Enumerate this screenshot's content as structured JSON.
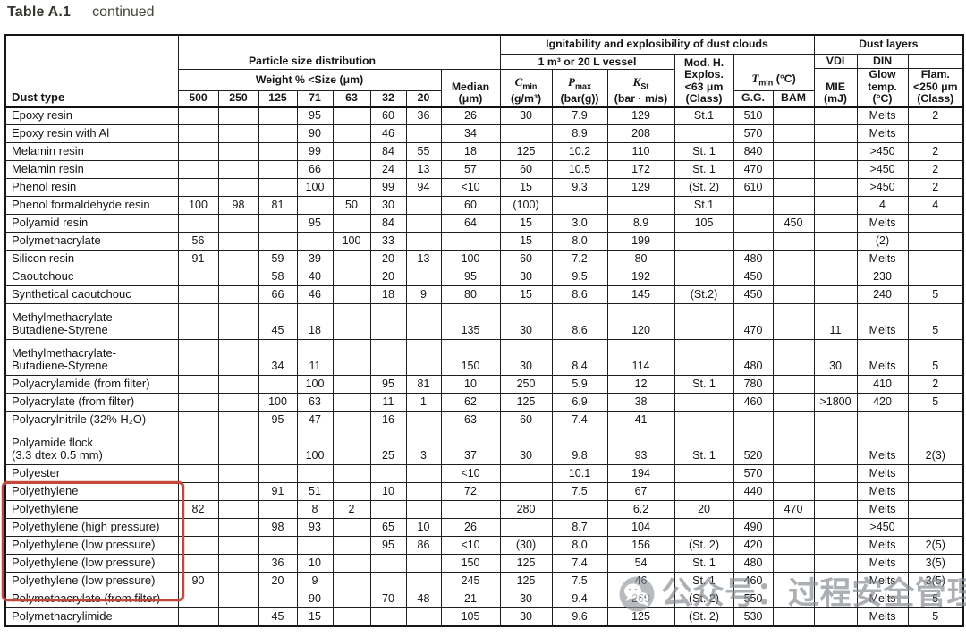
{
  "title": {
    "label": "Table A.1",
    "suffix": "continued"
  },
  "header": {
    "dust_type": "Dust type",
    "particle_group": "Particle size distribution",
    "weight_label": "Weight % <Size (μm)",
    "sizes": [
      "500",
      "250",
      "125",
      "71",
      "63",
      "32",
      "20"
    ],
    "median": {
      "line1": "Median",
      "line2": "(μm)"
    },
    "ignitability_group": "Ignitability and explosibility of dust clouds",
    "vessel_label": "1 m³ or 20 L vessel",
    "cmin": {
      "sym": "C",
      "sub": "min",
      "unit": "(g/m³)"
    },
    "pmax": {
      "sym": "P",
      "sub": "max",
      "unit": "(bar(g))"
    },
    "kst": {
      "sym": "K",
      "sub": "St",
      "unit": "(bar · m/s)"
    },
    "explos": {
      "lines": [
        "Mod. H.",
        "Explos.",
        "<63 μm",
        "(Class)"
      ]
    },
    "tmin": {
      "sym": "T",
      "sub": "min",
      "unit": "(°C)"
    },
    "gg": "G.G.",
    "bam": "BAM",
    "dust_layers_group": "Dust layers",
    "vdi": "VDI",
    "din": "DIN",
    "mie": {
      "lines": [
        "MIE",
        "(mJ)"
      ]
    },
    "glow": {
      "lines": [
        "Glow",
        "temp.",
        "(°C)"
      ]
    },
    "flam": {
      "lines": [
        "Flam.",
        "<250 μm",
        "(Class)"
      ]
    }
  },
  "column_keys": [
    "500",
    "250",
    "125",
    "71",
    "63",
    "32",
    "20",
    "median_um",
    "cmin_g_m3",
    "pmax_bar_g",
    "kst_bar_m_s",
    "explos_class",
    "tmin_gg",
    "tmin_bam",
    "mie_mj",
    "glow_temp",
    "flam_class"
  ],
  "rows": [
    {
      "name": "Epoxy resin",
      "highlight": false,
      "cells": [
        "",
        "",
        "",
        "95",
        "",
        "60",
        "36",
        "26",
        "30",
        "7.9",
        "129",
        "St.1",
        "510",
        "",
        "",
        "Melts",
        "2"
      ]
    },
    {
      "name": "Epoxy resin with Al",
      "highlight": false,
      "cells": [
        "",
        "",
        "",
        "90",
        "",
        "46",
        "",
        "34",
        "",
        "8.9",
        "208",
        "",
        "570",
        "",
        "",
        "Melts",
        ""
      ]
    },
    {
      "name": "Melamin resin",
      "highlight": false,
      "cells": [
        "",
        "",
        "",
        "99",
        "",
        "84",
        "55",
        "18",
        "125",
        "10.2",
        "110",
        "St. 1",
        "840",
        "",
        "",
        ">450",
        "2"
      ]
    },
    {
      "name": "Melamin resin",
      "highlight": false,
      "cells": [
        "",
        "",
        "",
        "66",
        "",
        "24",
        "13",
        "57",
        "60",
        "10.5",
        "172",
        "St. 1",
        "470",
        "",
        "",
        ">450",
        "2"
      ]
    },
    {
      "name": "Phenol resin",
      "highlight": false,
      "cells": [
        "",
        "",
        "",
        "100",
        "",
        "99",
        "94",
        "<10",
        "15",
        "9.3",
        "129",
        "(St. 2)",
        "610",
        "",
        "",
        ">450",
        "2"
      ]
    },
    {
      "name": "Phenol formaldehyde resin",
      "highlight": false,
      "cells": [
        "100",
        "98",
        "81",
        "",
        "50",
        "30",
        "",
        "60",
        "(100)",
        "",
        "",
        "St.1",
        "",
        "",
        "",
        "4",
        "4"
      ]
    },
    {
      "name": "Polyamid resin",
      "highlight": false,
      "cells": [
        "",
        "",
        "",
        "95",
        "",
        "84",
        "",
        "64",
        "15",
        "3.0",
        "8.9",
        "105",
        "",
        "450",
        "",
        "Melts",
        ""
      ]
    },
    {
      "name": "Polymethacrylate",
      "highlight": false,
      "cells": [
        "56",
        "",
        "",
        "",
        "100",
        "33",
        "",
        "",
        "15",
        "8.0",
        "199",
        "",
        "",
        "",
        "",
        "(2)",
        ""
      ]
    },
    {
      "name": "Silicon resin",
      "highlight": false,
      "cells": [
        "91",
        "",
        "59",
        "39",
        "",
        "20",
        "13",
        "100",
        "60",
        "7.2",
        "80",
        "",
        "480",
        "",
        "",
        "Melts",
        ""
      ]
    },
    {
      "name": "Caoutchouc",
      "highlight": false,
      "cells": [
        "",
        "",
        "58",
        "40",
        "",
        "20",
        "",
        "95",
        "30",
        "9.5",
        "192",
        "",
        "450",
        "",
        "",
        "230",
        ""
      ]
    },
    {
      "name": "Synthetical caoutchouc",
      "highlight": false,
      "cells": [
        "",
        "",
        "66",
        "46",
        "",
        "18",
        "9",
        "80",
        "15",
        "8.6",
        "145",
        "(St.2)",
        "450",
        "",
        "",
        "240",
        "5"
      ]
    },
    {
      "name": "Methylmethacrylate-\nButadiene-Styrene",
      "highlight": false,
      "cells": [
        "",
        "",
        "45",
        "18",
        "",
        "",
        "",
        "135",
        "30",
        "8.6",
        "120",
        "",
        "470",
        "",
        "11",
        "Melts",
        "5"
      ]
    },
    {
      "name": "Methylmethacrylate-\nButadiene-Styrene",
      "highlight": false,
      "cells": [
        "",
        "",
        "34",
        "11",
        "",
        "",
        "",
        "150",
        "30",
        "8.4",
        "114",
        "",
        "480",
        "",
        "30",
        "Melts",
        "5"
      ]
    },
    {
      "name": "Polyacrylamide (from filter)",
      "highlight": false,
      "cells": [
        "",
        "",
        "",
        "100",
        "",
        "95",
        "81",
        "10",
        "250",
        "5.9",
        "12",
        "St. 1",
        "780",
        "",
        "",
        "410",
        "2"
      ]
    },
    {
      "name": "Polyacrylate (from filter)",
      "highlight": false,
      "cells": [
        "",
        "",
        "100",
        "63",
        "",
        "11",
        "1",
        "62",
        "125",
        "6.9",
        "38",
        "",
        "460",
        "",
        ">1800",
        "420",
        "5"
      ]
    },
    {
      "name": "Polyacrylnitrile (32% H₂O)",
      "highlight": false,
      "cells": [
        "",
        "",
        "95",
        "47",
        "",
        "16",
        "",
        "63",
        "60",
        "7.4",
        "41",
        "",
        "",
        "",
        "",
        "",
        ""
      ]
    },
    {
      "name": "Polyamide flock\n(3.3 dtex 0.5 mm)",
      "highlight": false,
      "cells": [
        "",
        "",
        "",
        "100",
        "",
        "25",
        "3",
        "37",
        "30",
        "9.8",
        "93",
        "St. 1",
        "520",
        "",
        "",
        "Melts",
        "2(3)"
      ]
    },
    {
      "name": "Polyester",
      "highlight": false,
      "cells": [
        "",
        "",
        "",
        "",
        "",
        "",
        "",
        "<10",
        "",
        "10.1",
        "194",
        "",
        "570",
        "",
        "",
        "Melts",
        ""
      ]
    },
    {
      "name": "Polyethylene",
      "highlight": true,
      "cells": [
        "",
        "",
        "91",
        "51",
        "",
        "10",
        "",
        "72",
        "",
        "7.5",
        "67",
        "",
        "440",
        "",
        "",
        "Melts",
        ""
      ]
    },
    {
      "name": "Polyethylene",
      "highlight": true,
      "cells": [
        "82",
        "",
        "",
        "8",
        "2",
        "",
        "",
        "",
        "280",
        "",
        "6.2",
        "20",
        "",
        "470",
        "",
        "Melts",
        ""
      ]
    },
    {
      "name": "Polyethylene (high pressure)",
      "highlight": true,
      "cells": [
        "",
        "",
        "98",
        "93",
        "",
        "65",
        "10",
        "26",
        "",
        "8.7",
        "104",
        "",
        "490",
        "",
        "",
        ">450",
        ""
      ]
    },
    {
      "name": "Polyethylene (low pressure)",
      "highlight": true,
      "cells": [
        "",
        "",
        "",
        "",
        "",
        "95",
        "86",
        "<10",
        "(30)",
        "8.0",
        "156",
        "(St. 2)",
        "420",
        "",
        "",
        "Melts",
        "2(5)"
      ]
    },
    {
      "name": "Polyethylene (low pressure)",
      "highlight": true,
      "cells": [
        "",
        "",
        "36",
        "10",
        "",
        "",
        "",
        "150",
        "125",
        "7.4",
        "54",
        "St. 1",
        "480",
        "",
        "",
        "Melts",
        "3(5)"
      ]
    },
    {
      "name": "Polyethylene (low pressure)",
      "highlight": true,
      "cells": [
        "90",
        "",
        "20",
        "9",
        "",
        "",
        "",
        "245",
        "125",
        "7.5",
        "46",
        "St. 1",
        "460",
        "",
        "",
        "Melts",
        "3(5)"
      ]
    },
    {
      "name": "Polymethacrylate (from filter)",
      "highlight": false,
      "cells": [
        "",
        "",
        "",
        "90",
        "",
        "70",
        "48",
        "21",
        "30",
        "9.4",
        "269",
        "(St. 2)",
        "550",
        "",
        "",
        "Melts",
        "5"
      ]
    },
    {
      "name": "Polymethacrylimide",
      "highlight": false,
      "cells": [
        "",
        "",
        "45",
        "15",
        "",
        "",
        "",
        "105",
        "30",
        "9.6",
        "125",
        "(St. 2)",
        "530",
        "",
        "",
        "Melts",
        "5"
      ]
    }
  ],
  "watermark": {
    "icon": "wechat-icon",
    "text": "公众号：过程安全管理"
  },
  "colors": {
    "highlight_red": "#c4473c",
    "border_black": "#1f1f1f",
    "watermark_gray": "#868c93"
  }
}
